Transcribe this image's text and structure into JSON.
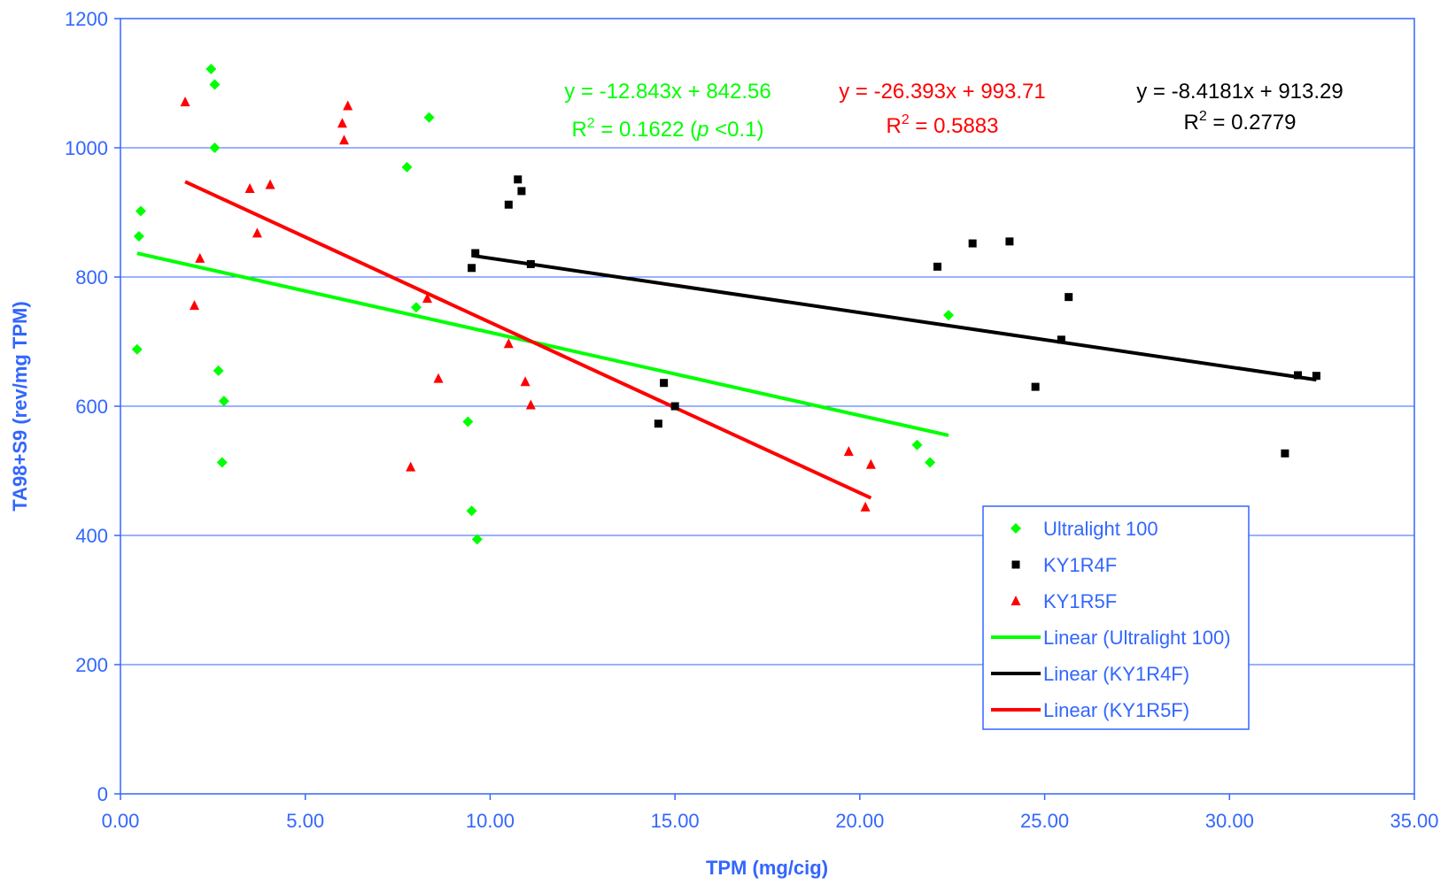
{
  "colors": {
    "axis": "#3366ff",
    "grid": "#3366ff",
    "plot_border": "#3366ff",
    "ultralight": "#00ff00",
    "ky1r4f": "#000000",
    "ky1r5f": "#ff0000"
  },
  "chart_data": {
    "type": "scatter",
    "xlabel": "TPM (mg/cig)",
    "ylabel": "TA98+S9 (rev/mg TPM)",
    "xlim": [
      0,
      35
    ],
    "ylim": [
      0,
      1200
    ],
    "x_ticks": [
      "0.00",
      "5.00",
      "10.00",
      "15.00",
      "20.00",
      "25.00",
      "30.00",
      "35.00"
    ],
    "y_ticks": [
      "0",
      "200",
      "400",
      "600",
      "800",
      "1000",
      "1200"
    ],
    "grid": "horizontal",
    "legend_position": "lower-right",
    "series": [
      {
        "name": "Ultralight 100",
        "marker": "diamond",
        "color": "#00ff00",
        "points": [
          [
            0.45,
            688
          ],
          [
            0.5,
            863
          ],
          [
            0.55,
            902
          ],
          [
            2.45,
            1122
          ],
          [
            2.55,
            1098
          ],
          [
            2.55,
            1000
          ],
          [
            2.65,
            655
          ],
          [
            2.8,
            608
          ],
          [
            2.75,
            513
          ],
          [
            7.75,
            970
          ],
          [
            8.0,
            753
          ],
          [
            8.35,
            1047
          ],
          [
            9.4,
            576
          ],
          [
            9.5,
            438
          ],
          [
            9.65,
            394
          ],
          [
            21.55,
            540
          ],
          [
            21.9,
            513
          ],
          [
            22.4,
            741
          ]
        ]
      },
      {
        "name": "KY1R4F",
        "marker": "square",
        "color": "#000000",
        "points": [
          [
            9.5,
            814
          ],
          [
            9.6,
            837
          ],
          [
            10.5,
            912
          ],
          [
            10.75,
            951
          ],
          [
            10.85,
            933
          ],
          [
            11.1,
            820
          ],
          [
            14.55,
            573
          ],
          [
            14.7,
            636
          ],
          [
            15.0,
            600
          ],
          [
            22.1,
            816
          ],
          [
            23.05,
            852
          ],
          [
            24.05,
            855
          ],
          [
            24.75,
            630
          ],
          [
            25.45,
            703
          ],
          [
            25.65,
            769
          ],
          [
            31.5,
            527
          ],
          [
            31.85,
            648
          ],
          [
            32.35,
            647
          ]
        ]
      },
      {
        "name": "KY1R5F",
        "marker": "triangle",
        "color": "#ff0000",
        "points": [
          [
            1.75,
            1071
          ],
          [
            2.0,
            756
          ],
          [
            2.15,
            829
          ],
          [
            3.5,
            937
          ],
          [
            3.7,
            868
          ],
          [
            4.05,
            943
          ],
          [
            6.0,
            1038
          ],
          [
            6.05,
            1012
          ],
          [
            6.15,
            1065
          ],
          [
            7.85,
            506
          ],
          [
            8.3,
            767
          ],
          [
            8.6,
            643
          ],
          [
            10.5,
            697
          ],
          [
            10.95,
            638
          ],
          [
            11.1,
            602
          ],
          [
            19.7,
            530
          ],
          [
            20.15,
            444
          ],
          [
            20.3,
            510
          ]
        ]
      },
      {
        "name": "Linear (Ultralight 100)",
        "type": "trendline",
        "color": "#00ff00",
        "slope": -12.843,
        "intercept": 842.56,
        "x_range": [
          0.45,
          22.4
        ]
      },
      {
        "name": "Linear (KY1R4F)",
        "type": "trendline",
        "color": "#000000",
        "slope": -8.4181,
        "intercept": 913.29,
        "x_range": [
          9.5,
          32.35
        ]
      },
      {
        "name": "Linear (KY1R5F)",
        "type": "trendline",
        "color": "#ff0000",
        "slope": -26.393,
        "intercept": 993.71,
        "x_range": [
          1.75,
          20.3
        ]
      }
    ],
    "annotations": [
      {
        "id": "green",
        "color": "#00ff00",
        "line1": "y = -12.843x + 842.56",
        "line2_pre": "R",
        "line2_sup": "2",
        "line2_mid": " = 0.1622 (",
        "line2_ital": "p",
        "line2_post": " <0.1)"
      },
      {
        "id": "red",
        "color": "#ff0000",
        "line1": "y = -26.393x + 993.71",
        "line2_pre": "R",
        "line2_sup": "2",
        "line2_mid": " = 0.5883",
        "line2_ital": "",
        "line2_post": ""
      },
      {
        "id": "black",
        "color": "#000000",
        "line1": "y = -8.4181x + 913.29",
        "line2_pre": "R",
        "line2_sup": "2",
        "line2_mid": " = 0.2779",
        "line2_ital": "",
        "line2_post": ""
      }
    ],
    "legend": [
      {
        "label": "Ultralight 100",
        "kind": "diamond",
        "color": "#00ff00"
      },
      {
        "label": "KY1R4F",
        "kind": "square",
        "color": "#000000"
      },
      {
        "label": "KY1R5F",
        "kind": "triangle",
        "color": "#ff0000"
      },
      {
        "label": "Linear (Ultralight 100)",
        "kind": "line",
        "color": "#00ff00"
      },
      {
        "label": "Linear (KY1R4F)",
        "kind": "line",
        "color": "#000000"
      },
      {
        "label": "Linear (KY1R5F)",
        "kind": "line",
        "color": "#ff0000"
      }
    ]
  }
}
